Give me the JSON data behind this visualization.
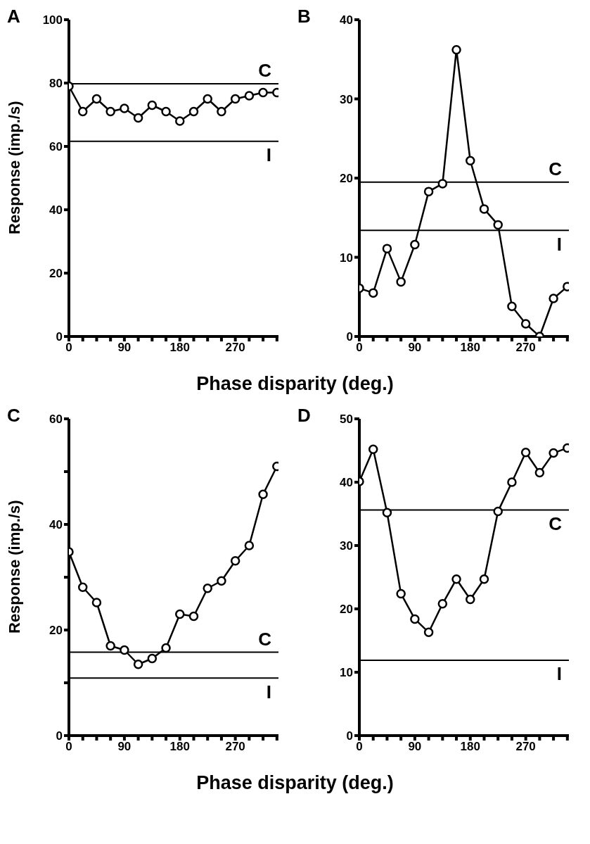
{
  "chart_data": [
    {
      "type": "line",
      "title": "A",
      "ylabel": "Response (imp./s)",
      "x": [
        0,
        22.5,
        45,
        67.5,
        90,
        112.5,
        135,
        157.5,
        180,
        202.5,
        225,
        247.5,
        270,
        292.5,
        315,
        337.5
      ],
      "series": [
        {
          "color": "#000000",
          "values": [
            79,
            71,
            75,
            71,
            72,
            69,
            73,
            71,
            68,
            71,
            75,
            71,
            75,
            76,
            77,
            77
          ]
        }
      ],
      "xlim": [
        0,
        340
      ],
      "xticks": [
        0,
        {
          "value": 22.5,
          "label": null
        },
        {
          "value": 45,
          "label": null
        },
        {
          "value": 67.5,
          "label": null
        },
        90,
        {
          "value": 112.5,
          "label": null
        },
        {
          "value": 135,
          "label": null
        },
        {
          "value": 157.5,
          "label": null
        },
        180,
        {
          "value": 202.5,
          "label": null
        },
        {
          "value": 225,
          "label": null
        },
        {
          "value": 247.5,
          "label": null
        },
        270,
        {
          "value": 292.5,
          "label": null
        },
        {
          "value": 315,
          "label": null
        },
        {
          "value": 337.5,
          "label": null
        }
      ],
      "ylim": [
        0,
        100
      ],
      "yticks": [
        0,
        20,
        40,
        60,
        80,
        100
      ],
      "ref_lines": [
        {
          "axis": "y",
          "value": 79.8,
          "label": "C",
          "color": "#000000"
        },
        {
          "axis": "y",
          "value": 61.6,
          "label": "I",
          "color": "#000000"
        }
      ],
      "marker": "circle",
      "line_style": "solid",
      "grid": false
    },
    {
      "type": "line",
      "title": "B",
      "xlabel": "Phase disparity (deg.)",
      "x": [
        0,
        22.5,
        45,
        67.5,
        90,
        112.5,
        135,
        157.5,
        180,
        202.5,
        225,
        247.5,
        270,
        292.5,
        315,
        337.5
      ],
      "series": [
        {
          "color": "#000000",
          "values": [
            6.1,
            5.5,
            11.1,
            6.9,
            11.6,
            18.3,
            19.3,
            36.2,
            22.2,
            16.1,
            14.1,
            3.8,
            1.6,
            0,
            4.8,
            6.3
          ]
        }
      ],
      "xlim": [
        0,
        340
      ],
      "xticks": [
        0,
        {
          "value": 22.5,
          "label": null
        },
        {
          "value": 45,
          "label": null
        },
        {
          "value": 67.5,
          "label": null
        },
        90,
        {
          "value": 112.5,
          "label": null
        },
        {
          "value": 135,
          "label": null
        },
        {
          "value": 157.5,
          "label": null
        },
        180,
        {
          "value": 202.5,
          "label": null
        },
        {
          "value": 225,
          "label": null
        },
        {
          "value": 247.5,
          "label": null
        },
        270,
        {
          "value": 292.5,
          "label": null
        },
        {
          "value": 315,
          "label": null
        },
        {
          "value": 337.5,
          "label": null
        }
      ],
      "ylim": [
        0,
        40
      ],
      "yticks": [
        0,
        10,
        20,
        30,
        40
      ],
      "ref_lines": [
        {
          "axis": "y",
          "value": 19.5,
          "label": "C",
          "color": "#000000"
        },
        {
          "axis": "y",
          "value": 13.4,
          "label": "I",
          "color": "#000000"
        }
      ],
      "marker": "circle",
      "line_style": "solid",
      "grid": false
    },
    {
      "type": "line",
      "title": "C",
      "ylabel": "Response (imp./s)",
      "x": [
        0,
        22.5,
        45,
        67.5,
        90,
        112.5,
        135,
        157.5,
        180,
        202.5,
        225,
        247.5,
        270,
        292.5,
        315,
        337.5
      ],
      "series": [
        {
          "color": "#000000",
          "values": [
            34.8,
            28.1,
            25.2,
            17.0,
            16.2,
            13.5,
            14.6,
            16.6,
            23.0,
            22.6,
            27.9,
            29.3,
            33.1,
            36.0,
            45.7,
            51.0
          ]
        }
      ],
      "xlim": [
        0,
        340
      ],
      "xticks": [
        0,
        {
          "value": 22.5,
          "label": null
        },
        {
          "value": 45,
          "label": null
        },
        {
          "value": 67.5,
          "label": null
        },
        90,
        {
          "value": 112.5,
          "label": null
        },
        {
          "value": 135,
          "label": null
        },
        {
          "value": 157.5,
          "label": null
        },
        180,
        {
          "value": 202.5,
          "label": null
        },
        {
          "value": 225,
          "label": null
        },
        {
          "value": 247.5,
          "label": null
        },
        270,
        {
          "value": 292.5,
          "label": null
        },
        {
          "value": 315,
          "label": null
        },
        {
          "value": 337.5,
          "label": null
        }
      ],
      "ylim": [
        0,
        60
      ],
      "yticks": [
        0,
        {
          "value": 10,
          "label": null
        },
        20,
        {
          "value": 30,
          "label": null
        },
        40,
        {
          "value": 50,
          "label": null
        },
        60
      ],
      "ref_lines": [
        {
          "axis": "y",
          "value": 15.8,
          "label": "C",
          "color": "#000000"
        },
        {
          "axis": "y",
          "value": 10.9,
          "label": "I",
          "color": "#000000"
        }
      ],
      "marker": "circle",
      "line_style": "solid",
      "grid": false
    },
    {
      "type": "line",
      "title": "D",
      "xlabel": "Phase disparity (deg.)",
      "x": [
        0,
        22.5,
        45,
        67.5,
        90,
        112.5,
        135,
        157.5,
        180,
        202.5,
        225,
        247.5,
        270,
        292.5,
        315,
        337.5
      ],
      "series": [
        {
          "color": "#000000",
          "values": [
            40.1,
            45.2,
            35.2,
            22.4,
            18.4,
            16.3,
            20.8,
            24.7,
            21.5,
            24.7,
            35.4,
            40.0,
            44.7,
            41.5,
            44.6,
            45.4
          ]
        }
      ],
      "xlim": [
        0,
        340
      ],
      "xticks": [
        0,
        {
          "value": 22.5,
          "label": null
        },
        {
          "value": 45,
          "label": null
        },
        {
          "value": 67.5,
          "label": null
        },
        90,
        {
          "value": 112.5,
          "label": null
        },
        {
          "value": 135,
          "label": null
        },
        {
          "value": 157.5,
          "label": null
        },
        180,
        {
          "value": 202.5,
          "label": null
        },
        {
          "value": 225,
          "label": null
        },
        {
          "value": 247.5,
          "label": null
        },
        270,
        {
          "value": 292.5,
          "label": null
        },
        {
          "value": 315,
          "label": null
        },
        {
          "value": 337.5,
          "label": null
        }
      ],
      "ylim": [
        0,
        50
      ],
      "yticks": [
        0,
        10,
        20,
        30,
        40,
        50
      ],
      "ref_lines": [
        {
          "axis": "y",
          "value": 35.6,
          "label": "C",
          "color": "#000000"
        },
        {
          "axis": "y",
          "value": 11.9,
          "label": "I",
          "color": "#000000"
        }
      ],
      "marker": "circle",
      "line_style": "solid",
      "grid": false
    }
  ]
}
